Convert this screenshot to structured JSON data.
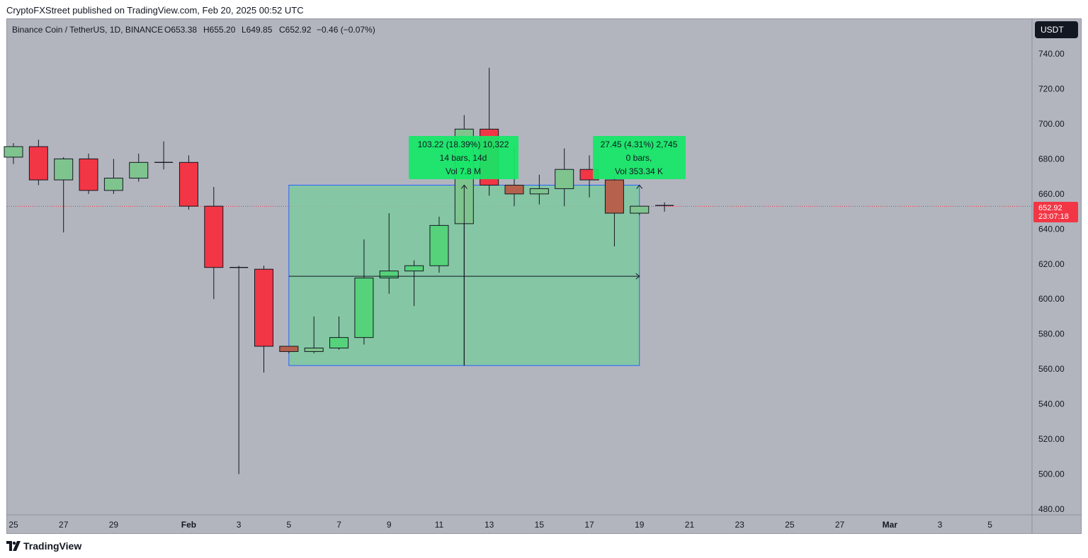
{
  "header": {
    "published": "CryptoFXStreet published on TradingView.com, Feb 20, 2025 00:52 UTC"
  },
  "legend": {
    "symbol": "Binance Coin / TetherUS, 1D, BINANCE",
    "open": "O653.38",
    "high": "H655.20",
    "low": "L649.85",
    "close": "C652.92",
    "change": "−0.46 (−0.07%)"
  },
  "currency_button": "USDT",
  "price_label": {
    "price": "652.92",
    "countdown": "23:07:18"
  },
  "footer": {
    "brand": "TradingView"
  },
  "colors": {
    "background": "#b2b5be",
    "up": "#7fc48e",
    "up_bright": "#56d37a",
    "down": "#f23645",
    "down_muted": "#b5614d",
    "range_fill": "#7dc9a0",
    "range_border": "#2962ff",
    "stat_box": "#14e866",
    "price_line": "#f23645"
  },
  "annotations": [
    {
      "lines": [
        "103.22 (18.39%) 10,322",
        "14 bars, 14d",
        "Vol 7.8 M"
      ]
    },
    {
      "lines": [
        "27.45 (4.31%) 2,745",
        "0 bars,",
        "Vol 353.34 K"
      ]
    }
  ],
  "chart_data": {
    "type": "candlestick",
    "y_axis": {
      "ticks": [
        480,
        500,
        520,
        540,
        560,
        580,
        600,
        620,
        640,
        660,
        680,
        700,
        720,
        740
      ],
      "tick_labels": [
        "480.00",
        "500.00",
        "520.00",
        "540.00",
        "560.00",
        "580.00",
        "600.00",
        "620.00",
        "640.00",
        "660.00",
        "680.00",
        "700.00",
        "720.00",
        "740.00"
      ]
    },
    "x_axis": {
      "tick_labels": [
        {
          "day": "2025-01-25",
          "label": "25"
        },
        {
          "day": "2025-01-27",
          "label": "27"
        },
        {
          "day": "2025-01-29",
          "label": "29"
        },
        {
          "day": "2025-02-01",
          "label": "Feb"
        },
        {
          "day": "2025-02-03",
          "label": "3"
        },
        {
          "day": "2025-02-05",
          "label": "5"
        },
        {
          "day": "2025-02-07",
          "label": "7"
        },
        {
          "day": "2025-02-09",
          "label": "9"
        },
        {
          "day": "2025-02-11",
          "label": "11"
        },
        {
          "day": "2025-02-13",
          "label": "13"
        },
        {
          "day": "2025-02-15",
          "label": "15"
        },
        {
          "day": "2025-02-17",
          "label": "17"
        },
        {
          "day": "2025-02-19",
          "label": "19"
        },
        {
          "day": "2025-02-21",
          "label": "21"
        },
        {
          "day": "2025-02-23",
          "label": "23"
        },
        {
          "day": "2025-02-25",
          "label": "25"
        },
        {
          "day": "2025-02-27",
          "label": "27"
        },
        {
          "day": "2025-03-01",
          "label": "Mar"
        },
        {
          "day": "2025-03-03",
          "label": "3"
        },
        {
          "day": "2025-03-05",
          "label": "5"
        }
      ]
    },
    "candles": [
      {
        "day": "2025-01-25",
        "o": 681,
        "h": 689,
        "l": 677,
        "c": 687
      },
      {
        "day": "2025-01-26",
        "o": 687,
        "h": 691,
        "l": 665,
        "c": 668
      },
      {
        "day": "2025-01-27",
        "o": 668,
        "h": 681,
        "l": 638,
        "c": 680
      },
      {
        "day": "2025-01-28",
        "o": 680,
        "h": 683,
        "l": 660,
        "c": 662
      },
      {
        "day": "2025-01-29",
        "o": 662,
        "h": 680,
        "l": 660,
        "c": 669
      },
      {
        "day": "2025-01-30",
        "o": 669,
        "h": 683,
        "l": 667,
        "c": 678
      },
      {
        "day": "2025-01-31",
        "o": 678,
        "h": 690,
        "l": 674,
        "c": 678
      },
      {
        "day": "2025-02-01",
        "o": 678,
        "h": 682,
        "l": 651,
        "c": 653
      },
      {
        "day": "2025-02-02",
        "o": 653,
        "h": 664,
        "l": 600,
        "c": 618
      },
      {
        "day": "2025-02-03",
        "o": 618,
        "h": 619,
        "l": 500,
        "c": 618
      },
      {
        "day": "2025-02-04",
        "o": 617,
        "h": 619,
        "l": 558,
        "c": 573
      },
      {
        "day": "2025-02-05",
        "o": 573,
        "h": 573,
        "l": 569,
        "c": 570
      },
      {
        "day": "2025-02-06",
        "o": 570,
        "h": 590,
        "l": 569,
        "c": 572
      },
      {
        "day": "2025-02-07",
        "o": 572,
        "h": 590,
        "l": 571,
        "c": 578
      },
      {
        "day": "2025-02-08",
        "o": 578,
        "h": 634,
        "l": 574,
        "c": 612
      },
      {
        "day": "2025-02-09",
        "o": 612,
        "h": 649,
        "l": 603,
        "c": 616
      },
      {
        "day": "2025-02-10",
        "o": 616,
        "h": 622,
        "l": 596,
        "c": 619
      },
      {
        "day": "2025-02-11",
        "o": 619,
        "h": 647,
        "l": 615,
        "c": 642
      },
      {
        "day": "2025-02-12",
        "o": 643,
        "h": 705,
        "l": 562,
        "c": 697
      },
      {
        "day": "2025-02-13",
        "o": 697,
        "h": 732,
        "l": 659,
        "c": 665
      },
      {
        "day": "2025-02-14",
        "o": 665,
        "h": 687,
        "l": 653,
        "c": 660
      },
      {
        "day": "2025-02-15",
        "o": 660,
        "h": 671,
        "l": 654,
        "c": 663
      },
      {
        "day": "2025-02-16",
        "o": 663,
        "h": 686,
        "l": 653,
        "c": 674
      },
      {
        "day": "2025-02-17",
        "o": 674,
        "h": 682,
        "l": 658,
        "c": 668
      },
      {
        "day": "2025-02-18",
        "o": 668,
        "h": 670,
        "l": 630,
        "c": 649
      },
      {
        "day": "2025-02-19",
        "o": 649,
        "h": 653,
        "l": 648,
        "c": 653
      },
      {
        "day": "2025-02-20",
        "o": 653.38,
        "h": 655.2,
        "l": 649.85,
        "c": 652.92
      }
    ],
    "muted_candles": [
      "2025-02-05",
      "2025-02-14",
      "2025-02-18"
    ],
    "current_price": 652.92,
    "range_box": {
      "from_day": "2025-02-05",
      "to_day": "2025-02-19",
      "low": 562,
      "high": 665,
      "mid_day": "2025-02-12",
      "arrow_price": 613
    },
    "second_measure": {
      "day": "2025-02-19",
      "from": 637.5,
      "to": 665
    }
  }
}
